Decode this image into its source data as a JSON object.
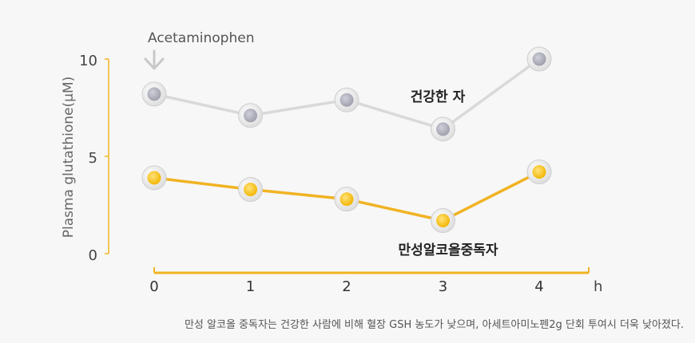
{
  "chart_data": {
    "type": "line",
    "x": [
      0,
      1,
      2,
      3,
      4
    ],
    "x_unit": "h",
    "ylabel": "Plasma glutathione(μM)",
    "ylim": [
      0,
      10
    ],
    "yticks": [
      0,
      5,
      10
    ],
    "grid": false,
    "annotation": "Acetaminophen",
    "series": [
      {
        "name": "건강한 자",
        "values": [
          8.2,
          7.1,
          7.9,
          6.4,
          10.0
        ],
        "color": "#d9d9d9",
        "marker": "#a9aab5"
      },
      {
        "name": "만성알코올중독자",
        "values": [
          3.9,
          3.3,
          2.8,
          1.7,
          4.2
        ],
        "color": "#f0b323",
        "marker": "#f5bc14"
      }
    ],
    "axis_color": "#f0b323"
  },
  "caption": "만성 알코올 중독자는 건강한 사람에 비해 혈장 GSH 농도가 낮으며, 아세트아미노펜2g 단회 투여시 더욱 낮아졌다."
}
